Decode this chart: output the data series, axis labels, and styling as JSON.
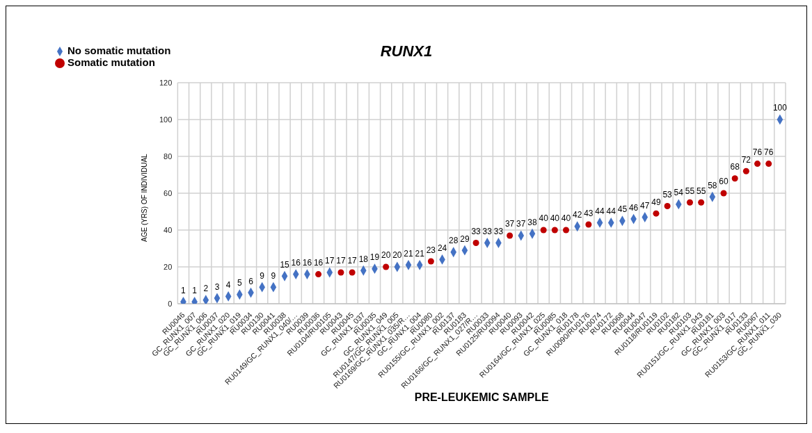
{
  "chart_data": {
    "type": "scatter",
    "title": "RUNX1",
    "xlabel": "PRE-LEUKEMIC SAMPLE",
    "ylabel": "AGE (YRS) OF INDIVIDUAL",
    "categories": [
      "RU0046",
      "GC_RUNX1_007",
      "GC_RUNX1_006",
      "RU0037",
      "GC_RUNX1_020",
      "GC_RUNX1_019",
      "RU0034",
      "RU0130",
      "RU0041",
      "RU0038",
      "RU0149/GC_RUNX1_040/…",
      "RU0039",
      "RU0036",
      "RU0104/RU0105",
      "RU0043",
      "RU0045",
      "GC_RUNX1_037",
      "RU0035",
      "GC_RUNX1_049",
      "RU0147/GC_RUNX1_005",
      "RU0169/GC_RUNX1_035/R…",
      "GC_RUNX1_004",
      "RU0080",
      "RU0155/GC_RUNX1_002",
      "RU0137",
      "RU0183",
      "RU0166/GC_RUNX1_027/R…",
      "RU0033",
      "RU0125/RU0094",
      "RU0040",
      "RU0093",
      "RU0042",
      "RU0164/GC_RUNX1_025",
      "RU0085",
      "GC_RUNX1_018",
      "RU0178",
      "RU0090/RU0176",
      "RU0074",
      "RU0172",
      "RU0068",
      "RU0044",
      "RU0047",
      "RU0118/RU0119",
      "RU0102",
      "RU0182",
      "RU0103",
      "RU0151/GC_RUNX1_043",
      "RU0181",
      "GC_RUNX1_003",
      "GC_RUNX1_017",
      "RU0133",
      "RU0067",
      "RU0153/GC_RUNX1_011",
      "GC_RUNX1_030"
    ],
    "series": [
      {
        "name": "No somatic mutation",
        "color": "#4472c4",
        "marker": "diamond",
        "values": [
          1,
          1,
          2,
          3,
          4,
          5,
          6,
          9,
          9,
          15,
          16,
          16,
          null,
          17,
          null,
          null,
          18,
          19,
          null,
          20,
          21,
          21,
          null,
          24,
          28,
          29,
          null,
          33,
          33,
          null,
          37,
          38,
          null,
          null,
          null,
          42,
          null,
          44,
          44,
          45,
          46,
          47,
          null,
          null,
          54,
          null,
          null,
          58,
          null,
          null,
          null,
          null,
          null,
          100
        ]
      },
      {
        "name": "Somatic mutation",
        "color": "#c00000",
        "marker": "circle",
        "values": [
          null,
          null,
          null,
          null,
          null,
          null,
          null,
          null,
          null,
          null,
          null,
          null,
          16,
          null,
          17,
          17,
          null,
          null,
          20,
          null,
          null,
          null,
          23,
          null,
          null,
          null,
          33,
          null,
          null,
          37,
          null,
          null,
          40,
          40,
          40,
          null,
          43,
          null,
          null,
          null,
          null,
          null,
          49,
          53,
          null,
          55,
          55,
          null,
          60,
          68,
          72,
          76,
          76,
          null
        ]
      }
    ],
    "ylim": [
      0,
      120
    ],
    "yticks": [
      0,
      20,
      40,
      60,
      80,
      100,
      120
    ],
    "grid": true,
    "legend": "top left",
    "data_labels": true
  }
}
